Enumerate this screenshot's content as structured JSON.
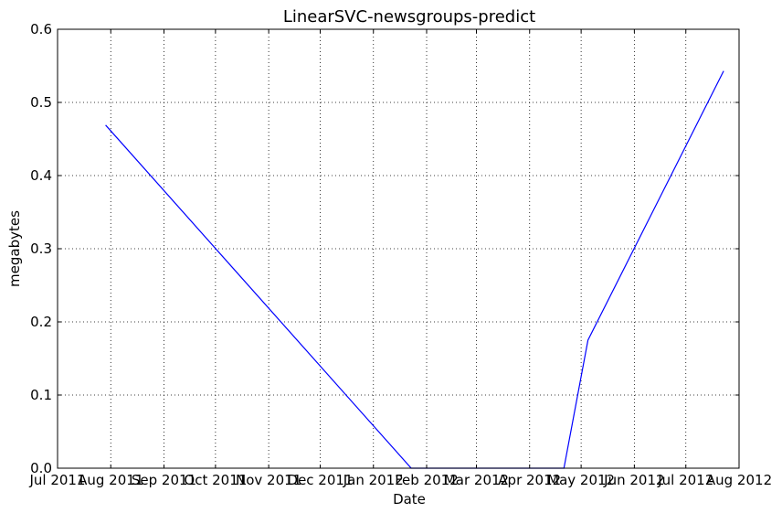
{
  "chart_data": {
    "type": "line",
    "title": "LinearSVC-newsgroups-predict",
    "xlabel": "Date",
    "ylabel": "megabytes",
    "x_ticks": [
      "Jul 2011",
      "Aug 2011",
      "Sep 2011",
      "Oct 2011",
      "Nov 2011",
      "Dec 2011",
      "Jan 2012",
      "Feb 2012",
      "Mar 2012",
      "Apr 2012",
      "May 2012",
      "Jun 2012",
      "Jul 2012",
      "Aug 2012"
    ],
    "xlim": [
      "2011-07-01",
      "2012-08-01"
    ],
    "ylim": [
      0,
      0.6
    ],
    "y_ticks": [
      "0.0",
      "0.1",
      "0.2",
      "0.3",
      "0.4",
      "0.5",
      "0.6"
    ],
    "grid": true,
    "series": [
      {
        "name": "megabytes",
        "color": "#0000ff",
        "points": [
          {
            "x": "2011-07-29",
            "y": 0.469
          },
          {
            "x": "2012-01-23",
            "y": 0.0
          },
          {
            "x": "2012-04-21",
            "y": 0.0
          },
          {
            "x": "2012-05-05",
            "y": 0.175
          },
          {
            "x": "2012-07-23",
            "y": 0.543
          }
        ]
      }
    ]
  }
}
